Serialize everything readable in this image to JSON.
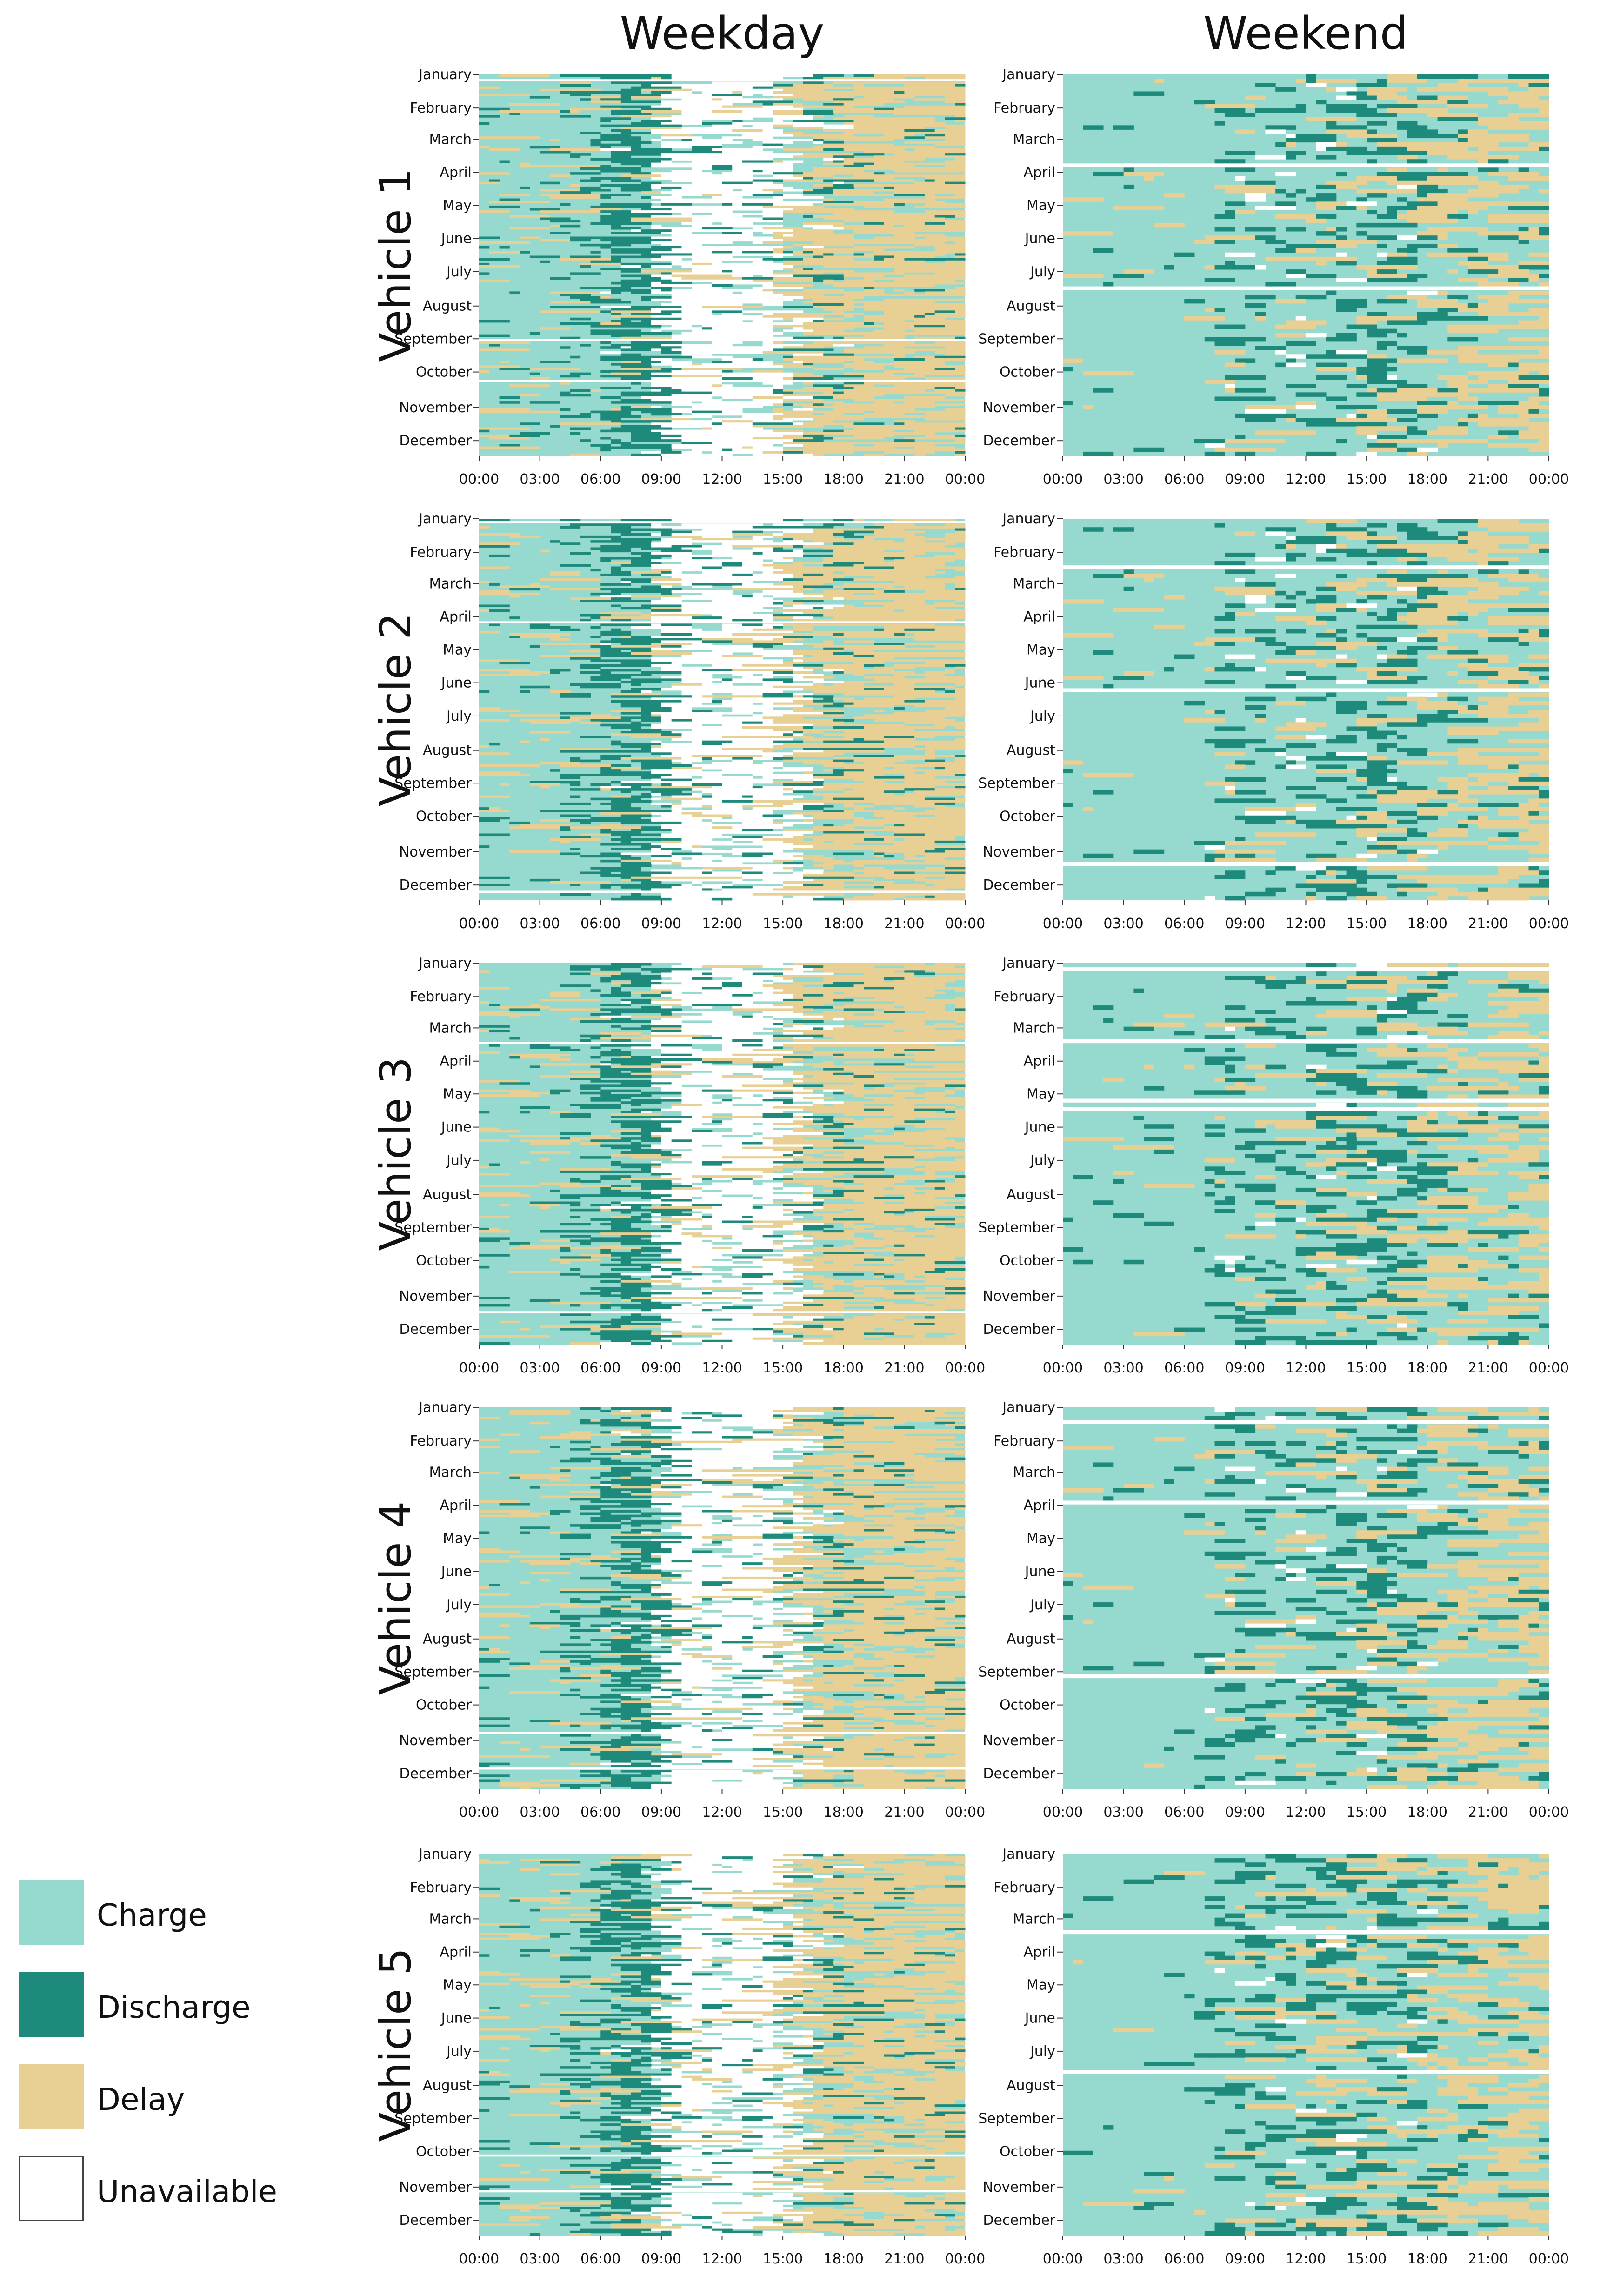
{
  "colors": {
    "charge": "#96d9ce",
    "discharge": "#1e8a7b",
    "delay": "#e8cf94",
    "unavailable": "#ffffff"
  },
  "legend": [
    {
      "key": "charge",
      "label": "Charge",
      "color": "#96d9ce"
    },
    {
      "key": "discharge",
      "label": "Discharge",
      "color": "#1e8a7b"
    },
    {
      "key": "delay",
      "label": "Delay",
      "color": "#e8cf94"
    },
    {
      "key": "unavailable",
      "label": "Unavailable",
      "color": "#ffffff"
    }
  ],
  "chart_data": {
    "type": "heatmap",
    "column_titles": [
      "Weekday",
      "Weekend"
    ],
    "row_titles": [
      "Vehicle 1",
      "Vehicle 2",
      "Vehicle 3",
      "Vehicle 4",
      "Vehicle 5"
    ],
    "x_ticks": [
      "00:00",
      "03:00",
      "06:00",
      "09:00",
      "12:00",
      "15:00",
      "18:00",
      "21:00",
      "00:00"
    ],
    "y_ticks": [
      "January",
      "February",
      "March",
      "April",
      "May",
      "June",
      "July",
      "August",
      "September",
      "October",
      "November",
      "December"
    ],
    "categories": [
      "Charge",
      "Discharge",
      "Delay",
      "Unavailable"
    ],
    "x_range": [
      "00:00",
      "24:00"
    ],
    "y_range": [
      "January",
      "December"
    ],
    "grid": false,
    "legend_position": "bottom-left",
    "panels": [
      {
        "vehicle": "Vehicle 1",
        "day_type": "Weekday",
        "discharge_peak": "06:00-09:00",
        "unavailable_window": "09:00-15:00",
        "delay_window": "15:00-24:00"
      },
      {
        "vehicle": "Vehicle 1",
        "day_type": "Weekend",
        "discharge_peak": "12:00-21:00",
        "unavailable_window": "",
        "delay_window": "18:00-24:00"
      },
      {
        "vehicle": "Vehicle 2",
        "day_type": "Weekday",
        "discharge_peak": "06:00-09:00",
        "unavailable_window": "09:00-15:00",
        "delay_window": "15:00-24:00"
      },
      {
        "vehicle": "Vehicle 2",
        "day_type": "Weekend",
        "discharge_peak": "09:00-21:00",
        "unavailable_window": "",
        "delay_window": "15:00-24:00"
      },
      {
        "vehicle": "Vehicle 3",
        "day_type": "Weekday",
        "discharge_peak": "06:00-09:00",
        "unavailable_window": "09:00-15:00",
        "delay_window": "15:00-24:00"
      },
      {
        "vehicle": "Vehicle 3",
        "day_type": "Weekend",
        "discharge_peak": "09:00-21:00",
        "unavailable_window": "",
        "delay_window": "15:00-24:00"
      },
      {
        "vehicle": "Vehicle 4",
        "day_type": "Weekday",
        "discharge_peak": "06:00-09:00",
        "unavailable_window": "09:00-15:00",
        "delay_window": "15:00-24:00"
      },
      {
        "vehicle": "Vehicle 4",
        "day_type": "Weekend",
        "discharge_peak": "09:00-21:00",
        "unavailable_window": "",
        "delay_window": "15:00-24:00"
      },
      {
        "vehicle": "Vehicle 5",
        "day_type": "Weekday",
        "discharge_peak": "06:00-09:00",
        "unavailable_window": "09:00-15:00",
        "delay_window": "15:00-24:00"
      },
      {
        "vehicle": "Vehicle 5",
        "day_type": "Weekend",
        "discharge_peak": "09:00-21:00",
        "unavailable_window": "",
        "delay_window": "15:00-24:00"
      }
    ]
  }
}
